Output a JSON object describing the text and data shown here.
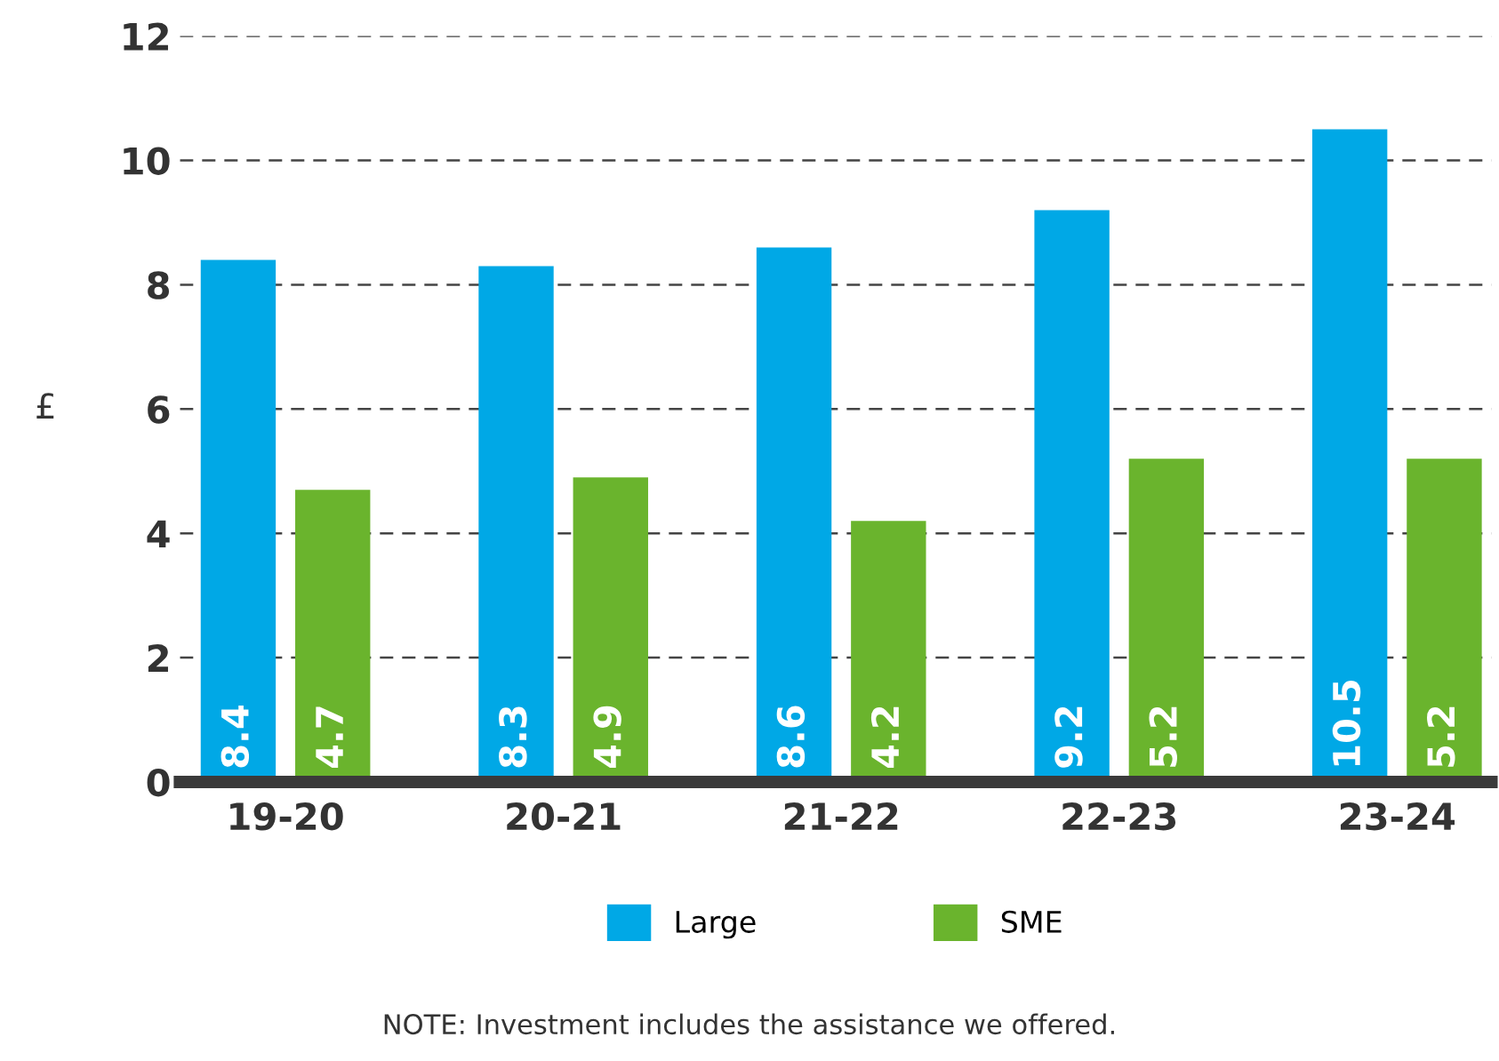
{
  "chart_data": {
    "type": "bar",
    "ylabel": "£",
    "categories": [
      "19-20",
      "20-21",
      "21-22",
      "22-23",
      "23-24"
    ],
    "series": [
      {
        "name": "Large",
        "color": "#00a8e6",
        "values": [
          8.4,
          8.3,
          8.6,
          9.2,
          10.5
        ]
      },
      {
        "name": "SME",
        "color": "#6ab42d",
        "values": [
          4.7,
          4.9,
          4.2,
          5.2,
          5.2
        ]
      }
    ],
    "ylim": [
      0,
      12
    ],
    "yticks": [
      0,
      2,
      4,
      6,
      8,
      10,
      12
    ],
    "grid": "y",
    "legend": "bottom",
    "data_labels": true,
    "annotations": [
      "NOTE: Investment includes the assistance we offered."
    ]
  }
}
